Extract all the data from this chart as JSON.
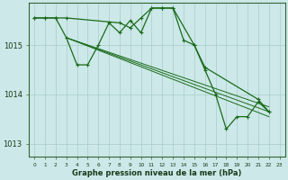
{
  "xlabel": "Graphe pression niveau de la mer (hPa)",
  "background_color": "#cce8e8",
  "plot_bg_color": "#cce8e8",
  "grid_color": "#aacccc",
  "line_color": "#1a6b1a",
  "ylim": [
    1012.75,
    1015.85
  ],
  "yticks": [
    1013,
    1014,
    1015
  ],
  "x_ticks": [
    0,
    1,
    2,
    3,
    4,
    5,
    6,
    7,
    8,
    9,
    10,
    11,
    12,
    13,
    14,
    15,
    16,
    17,
    18,
    19,
    20,
    21,
    22,
    23
  ],
  "series_main": [
    1015.55,
    1015.55,
    1015.55,
    1015.15,
    1014.6,
    1014.6,
    1015.0,
    1015.45,
    1015.25,
    1015.5,
    1015.25,
    1015.75,
    1015.75,
    1015.75,
    1015.1,
    1015.0,
    1014.5,
    1014.0,
    1013.3,
    1013.55,
    1013.55,
    1013.85,
    1013.65,
    null
  ],
  "series_straight": [
    [
      [
        3,
        1015.15
      ],
      [
        22,
        1013.55
      ]
    ],
    [
      [
        3,
        1015.15
      ],
      [
        22,
        1013.65
      ]
    ],
    [
      [
        3,
        1015.15
      ],
      [
        22,
        1013.75
      ]
    ]
  ],
  "series_upper": [
    1015.55,
    1015.55,
    1015.55,
    1015.55,
    null,
    null,
    null,
    null,
    1015.45,
    1015.35,
    1015.55,
    1015.75,
    1015.75,
    1015.75,
    null,
    1015.0,
    1014.55,
    null,
    null,
    null,
    null,
    1013.9,
    1013.65,
    null
  ]
}
